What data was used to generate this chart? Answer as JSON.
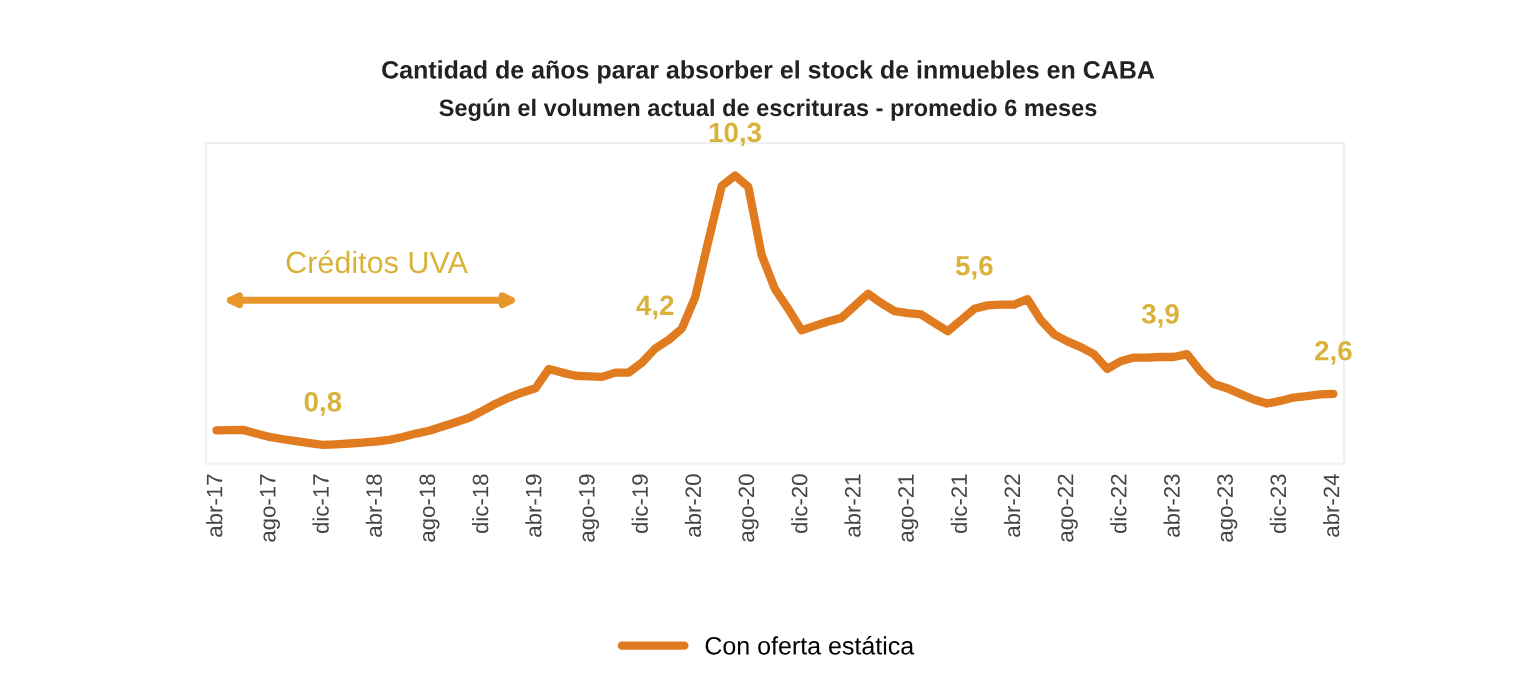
{
  "chart_data": {
    "type": "line",
    "title": "Cantidad de años parar absorber el stock de inmuebles en CABA",
    "subtitle": "Según el volumen actual de escrituras - promedio 6 meses",
    "categories": [
      "abr-17",
      null,
      null,
      null,
      "ago-17",
      null,
      null,
      null,
      "dic-17",
      null,
      null,
      null,
      "abr-18",
      null,
      null,
      null,
      "ago-18",
      null,
      null,
      null,
      "dic-18",
      null,
      null,
      null,
      "abr-19",
      null,
      null,
      null,
      "ago-19",
      null,
      null,
      null,
      "dic-19",
      null,
      null,
      null,
      "abr-20",
      null,
      null,
      null,
      "ago-20",
      null,
      null,
      null,
      "dic-20",
      null,
      null,
      null,
      "abr-21",
      null,
      null,
      null,
      "ago-21",
      null,
      null,
      null,
      "dic-21",
      null,
      null,
      null,
      "abr-22",
      null,
      null,
      null,
      "ago-22",
      null,
      null,
      null,
      "dic-22",
      null,
      null,
      null,
      "abr-23",
      null,
      null,
      null,
      "ago-23",
      null,
      null,
      null,
      "dic-23",
      null,
      null,
      null,
      "abr-24"
    ],
    "series": [
      {
        "name": "Con oferta estática",
        "color": "#e07b20",
        "values": [
          1.31,
          1.32,
          1.33,
          1.2,
          1.08,
          1.0,
          0.93,
          0.86,
          0.8,
          0.82,
          0.85,
          0.88,
          0.92,
          0.98,
          1.08,
          1.2,
          1.3,
          1.45,
          1.6,
          1.76,
          2.0,
          2.25,
          2.47,
          2.65,
          2.8,
          3.48,
          3.35,
          3.24,
          3.22,
          3.2,
          3.35,
          3.35,
          3.7,
          4.2,
          4.5,
          4.9,
          6.0,
          8.0,
          9.93,
          10.3,
          9.9,
          7.5,
          6.3,
          5.6,
          4.84,
          5.0,
          5.15,
          5.28,
          5.7,
          6.13,
          5.8,
          5.52,
          5.45,
          5.4,
          5.1,
          4.81,
          5.2,
          5.6,
          5.72,
          5.75,
          5.75,
          5.94,
          5.2,
          4.7,
          4.45,
          4.25,
          4.0,
          3.48,
          3.75,
          3.88,
          3.88,
          3.9,
          3.9,
          4.0,
          3.4,
          2.95,
          2.8,
          2.6,
          2.4,
          2.26,
          2.35,
          2.47,
          2.52,
          2.58,
          2.6
        ],
        "value_labels": [
          null,
          null,
          null,
          null,
          null,
          null,
          null,
          null,
          "0,8",
          null,
          null,
          null,
          null,
          null,
          null,
          null,
          null,
          null,
          null,
          null,
          null,
          null,
          null,
          null,
          null,
          null,
          null,
          null,
          null,
          null,
          null,
          null,
          null,
          "4,2",
          null,
          null,
          null,
          null,
          null,
          "10,3",
          null,
          null,
          null,
          null,
          null,
          null,
          null,
          null,
          null,
          null,
          null,
          null,
          null,
          null,
          null,
          null,
          null,
          "5,6",
          null,
          null,
          null,
          null,
          null,
          null,
          null,
          null,
          null,
          null,
          null,
          null,
          null,
          "3,9",
          null,
          null,
          null,
          null,
          null,
          null,
          null,
          null,
          null,
          null,
          null,
          null,
          "2,6"
        ]
      }
    ],
    "annotations": [
      "Créditos UVA"
    ],
    "legend": "bottom",
    "grid": false,
    "marker": "none",
    "line_style": "solid"
  }
}
